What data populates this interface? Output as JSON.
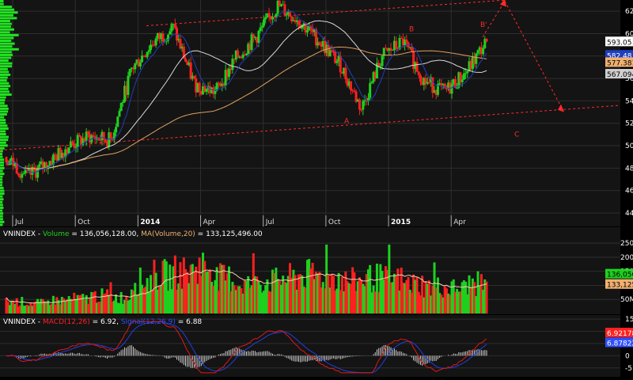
{
  "chart_data": [
    {
      "panel": "price",
      "type": "candlestick",
      "symbol": "VNINDEX",
      "x_tick_labels": [
        "Jul",
        "Oct",
        "2014",
        "Apr",
        "Jul",
        "Oct",
        "2015",
        "Apr"
      ],
      "y_tick_labels": [
        440,
        460,
        480,
        500,
        520,
        540,
        560,
        580,
        600,
        620
      ],
      "ylim": [
        428,
        630
      ],
      "grid": true,
      "last_values": {
        "close": {
          "label": "593.05",
          "value": 593.05,
          "color": "#ffffff"
        },
        "ma_short": {
          "label": "582.48",
          "value": 582.48,
          "color": "#1f3fbf"
        },
        "ma_mid": {
          "label": "577.381",
          "value": 577.381,
          "color": "#f0b070"
        },
        "ma_long": {
          "label": "567.094",
          "value": 567.094,
          "color": "#cfcfcf"
        }
      },
      "wave_labels": [
        "A",
        "B",
        "B'",
        "C"
      ],
      "series_colors": {
        "up": "#1fd01f",
        "down": "#ff2020",
        "ma_short": "#1f3fbf",
        "ma_mid": "#e0a060",
        "ma_long": "#d8d8d8",
        "trend": "#ff2a2a"
      },
      "volume_profile_color": "#22ee22",
      "monthly_closes": [
        {
          "month": "2013-07",
          "close": 490
        },
        {
          "month": "2013-08",
          "close": 472
        },
        {
          "month": "2013-09",
          "close": 485
        },
        {
          "month": "2013-10",
          "close": 500
        },
        {
          "month": "2013-11",
          "close": 508
        },
        {
          "month": "2013-12",
          "close": 505
        },
        {
          "month": "2014-01",
          "close": 568
        },
        {
          "month": "2014-02",
          "close": 592
        },
        {
          "month": "2014-03",
          "close": 605
        },
        {
          "month": "2014-04",
          "close": 555
        },
        {
          "month": "2014-05",
          "close": 548
        },
        {
          "month": "2014-06",
          "close": 578
        },
        {
          "month": "2014-07",
          "close": 598
        },
        {
          "month": "2014-08",
          "close": 625
        },
        {
          "month": "2014-09",
          "close": 612
        },
        {
          "month": "2014-10",
          "close": 593
        },
        {
          "month": "2014-11",
          "close": 572
        },
        {
          "month": "2014-12",
          "close": 533
        },
        {
          "month": "2015-01",
          "close": 580
        },
        {
          "month": "2015-02",
          "close": 593
        },
        {
          "month": "2015-03",
          "close": 558
        },
        {
          "month": "2015-04",
          "close": 548
        },
        {
          "month": "2015-05",
          "close": 565
        },
        {
          "month": "2015-06",
          "close": 593
        }
      ]
    },
    {
      "panel": "volume",
      "type": "bar",
      "title_prefix": "VNINDEX - ",
      "title_series": "Volume",
      "title_value": " = 136,056,128.00, ",
      "title_ma": "MA(Volume,20)",
      "title_ma_value": " = 133,125,496.00",
      "y_tick_labels": [
        "250M",
        "200M",
        "150M",
        "100M",
        "50M"
      ],
      "last_values": {
        "volume": {
          "label": "136,056,1",
          "color": "#1fd01f"
        },
        "ma": {
          "label": "133,125,4",
          "color": "#f0b070"
        }
      },
      "monthly_volume_millions": [
        40,
        35,
        45,
        50,
        60,
        55,
        110,
        130,
        140,
        160,
        120,
        100,
        110,
        120,
        130,
        125,
        110,
        120,
        115,
        100,
        90,
        85,
        100,
        130
      ]
    },
    {
      "panel": "macd",
      "type": "histogram_line",
      "title_prefix": "VNINDEX - ",
      "title_macd": "MACD(12,26)",
      "title_macd_value": " = 6.92, ",
      "title_signal": "Signal(12,26,9)",
      "title_signal_value": " = 6.88",
      "y_tick_labels": [
        15,
        10,
        5,
        0,
        -5
      ],
      "ylim": [
        -8,
        16
      ],
      "last_values": {
        "macd": {
          "label": "6.92178",
          "color": "#ff2020"
        },
        "signal": {
          "label": "6.87822",
          "color": "#3050ff"
        }
      },
      "series_colors": {
        "macd": "#e01818",
        "signal": "#2040e0",
        "histogram": "#d0d0d0"
      }
    }
  ]
}
